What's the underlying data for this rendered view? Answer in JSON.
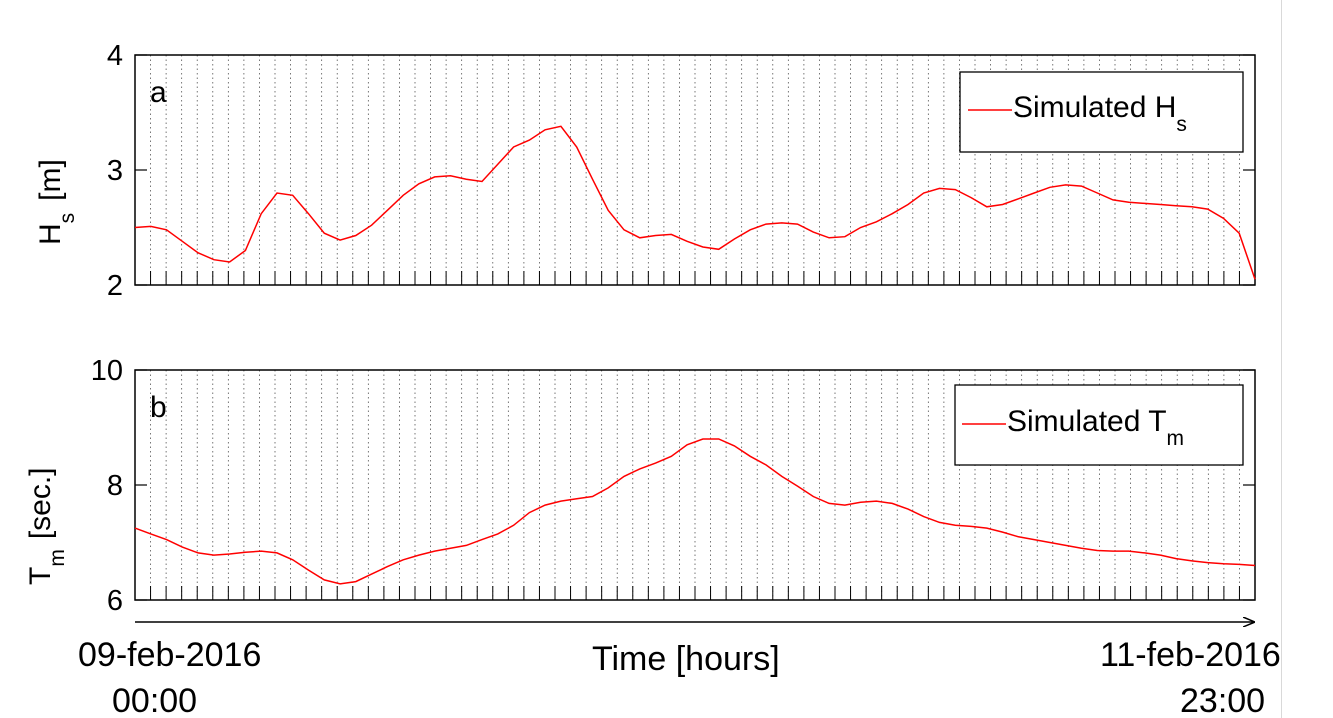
{
  "colors": {
    "series": "#ff0000",
    "grid": "#555555",
    "axis": "#000000"
  },
  "time_axis": {
    "label": "Time [hours]",
    "start_date": "09-feb-2016",
    "start_time": "00:00",
    "end_date": "11-feb-2016",
    "end_time": "23:00"
  },
  "chart_data": [
    {
      "type": "line",
      "panel_letter": "a",
      "ylabel_main": "H",
      "ylabel_sub": "s",
      "ylabel_unit": "[m]",
      "ylim": [
        2,
        4
      ],
      "yticks": [
        "2",
        "3",
        "4"
      ],
      "grid": "vertical dotted",
      "legend_position": "top-right",
      "series": [
        {
          "name": "Simulated H",
          "name_sub": "s",
          "x": [
            0,
            1,
            2,
            3,
            4,
            5,
            6,
            7,
            8,
            9,
            10,
            11,
            12,
            13,
            14,
            15,
            16,
            17,
            18,
            19,
            20,
            21,
            22,
            23,
            24,
            25,
            26,
            27,
            28,
            29,
            30,
            31,
            32,
            33,
            34,
            35,
            36,
            37,
            38,
            39,
            40,
            41,
            42,
            43,
            44,
            45,
            46,
            47,
            48,
            49,
            50,
            51,
            52,
            53,
            54,
            55,
            56,
            57,
            58,
            59,
            60,
            61,
            62,
            63,
            64,
            65,
            66,
            67,
            68,
            69,
            70,
            71
          ],
          "values": [
            2.5,
            2.51,
            2.48,
            2.38,
            2.28,
            2.22,
            2.2,
            2.3,
            2.62,
            2.8,
            2.78,
            2.62,
            2.45,
            2.39,
            2.43,
            2.52,
            2.65,
            2.78,
            2.88,
            2.94,
            2.95,
            2.92,
            2.9,
            3.05,
            3.2,
            3.26,
            3.35,
            3.38,
            3.2,
            2.92,
            2.65,
            2.48,
            2.41,
            2.43,
            2.44,
            2.38,
            2.33,
            2.31,
            2.4,
            2.48,
            2.53,
            2.54,
            2.53,
            2.46,
            2.41,
            2.42,
            2.5,
            2.55,
            2.62,
            2.7,
            2.8,
            2.84,
            2.83,
            2.76,
            2.68,
            2.7,
            2.75,
            2.8,
            2.85,
            2.87,
            2.86,
            2.8,
            2.74,
            2.72,
            2.71,
            2.7,
            2.69,
            2.68,
            2.66,
            2.58,
            2.45,
            2.05
          ]
        }
      ]
    },
    {
      "type": "line",
      "panel_letter": "b",
      "ylabel_main": "T",
      "ylabel_sub": "m",
      "ylabel_unit": "[sec.]",
      "ylim": [
        6,
        10
      ],
      "yticks": [
        "6",
        "8",
        "10"
      ],
      "grid": "vertical dotted",
      "legend_position": "top-right",
      "series": [
        {
          "name": "Simulated T",
          "name_sub": "m",
          "x": [
            0,
            1,
            2,
            3,
            4,
            5,
            6,
            7,
            8,
            9,
            10,
            11,
            12,
            13,
            14,
            15,
            16,
            17,
            18,
            19,
            20,
            21,
            22,
            23,
            24,
            25,
            26,
            27,
            28,
            29,
            30,
            31,
            32,
            33,
            34,
            35,
            36,
            37,
            38,
            39,
            40,
            41,
            42,
            43,
            44,
            45,
            46,
            47,
            48,
            49,
            50,
            51,
            52,
            53,
            54,
            55,
            56,
            57,
            58,
            59,
            60,
            61,
            62,
            63,
            64,
            65,
            66,
            67,
            68,
            69,
            70,
            71
          ],
          "values": [
            7.25,
            7.15,
            7.05,
            6.92,
            6.82,
            6.78,
            6.8,
            6.83,
            6.85,
            6.82,
            6.7,
            6.52,
            6.35,
            6.28,
            6.32,
            6.45,
            6.58,
            6.7,
            6.78,
            6.85,
            6.9,
            6.95,
            7.05,
            7.15,
            7.3,
            7.52,
            7.65,
            7.72,
            7.76,
            7.8,
            7.95,
            8.15,
            8.28,
            8.38,
            8.5,
            8.7,
            8.8,
            8.8,
            8.68,
            8.5,
            8.35,
            8.15,
            7.98,
            7.8,
            7.68,
            7.65,
            7.7,
            7.72,
            7.68,
            7.58,
            7.45,
            7.35,
            7.3,
            7.28,
            7.25,
            7.18,
            7.1,
            7.05,
            7.0,
            6.95,
            6.9,
            6.86,
            6.85,
            6.85,
            6.82,
            6.78,
            6.72,
            6.68,
            6.65,
            6.63,
            6.62,
            6.6
          ]
        }
      ]
    }
  ]
}
